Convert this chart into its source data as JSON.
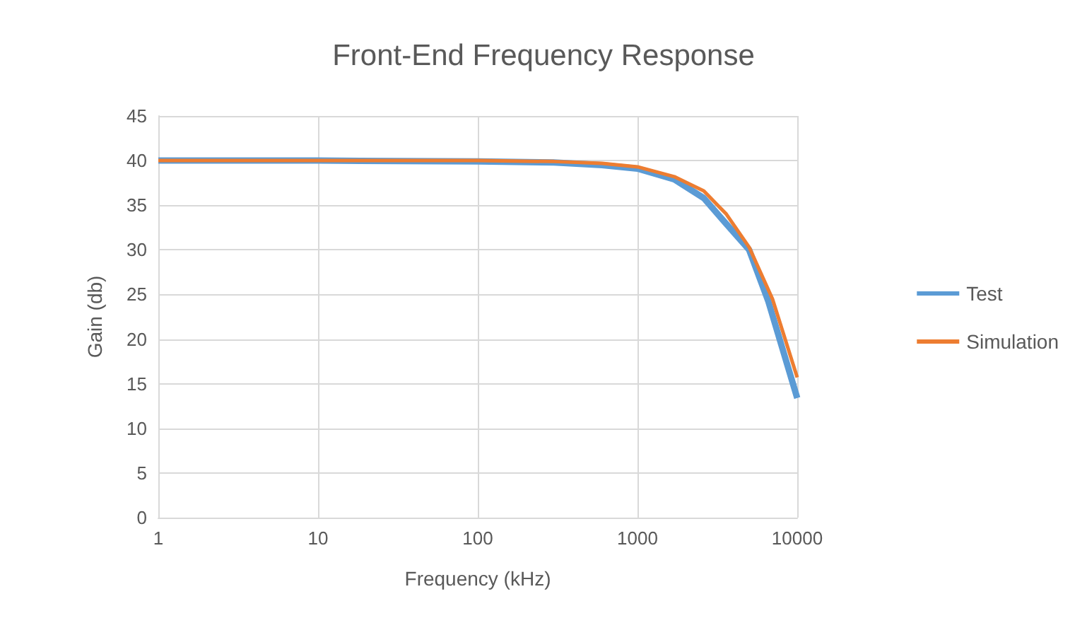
{
  "chart_data": {
    "type": "line",
    "title": "Front-End Frequency Response",
    "xlabel": "Frequency (kHz)",
    "ylabel": "Gain (db)",
    "log": "x",
    "xlim": [
      1,
      10000
    ],
    "xticks": [
      1,
      10,
      100,
      1000,
      10000
    ],
    "ylim": [
      0,
      45
    ],
    "yticks": [
      0,
      5,
      10,
      15,
      20,
      25,
      30,
      35,
      40,
      45
    ],
    "grid": true,
    "legend": "right",
    "marker": "none",
    "line_style": "solid",
    "series": [
      {
        "name": "Test",
        "color": "#5b9bd5",
        "x": [
          1,
          10,
          100,
          300,
          600,
          1000,
          1700,
          2600,
          3600,
          5000,
          6600,
          10000
        ],
        "values": [
          40,
          40,
          39.9,
          39.8,
          39.5,
          39.1,
          37.9,
          35.8,
          32.9,
          30.0,
          24.2,
          13.4
        ]
      },
      {
        "name": "Simulation",
        "color": "#ed7d31",
        "x": [
          1,
          10,
          100,
          300,
          600,
          1000,
          1700,
          2600,
          3600,
          5000,
          7000,
          10000
        ],
        "values": [
          40,
          40,
          40,
          39.9,
          39.7,
          39.3,
          38.2,
          36.6,
          34.0,
          30.3,
          24.5,
          15.7
        ]
      }
    ]
  }
}
